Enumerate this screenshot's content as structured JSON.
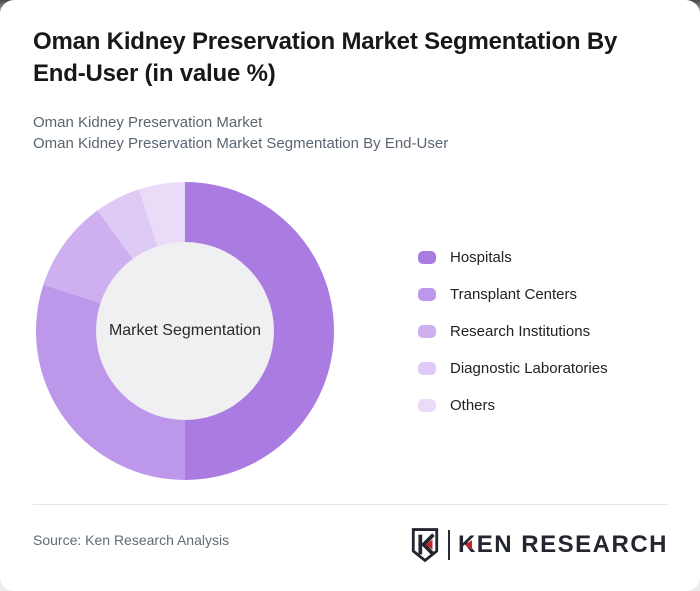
{
  "page": {
    "title": "Oman Kidney Preservation Market Segmentation By End-User (in value %)",
    "subtitle_line1": "Oman Kidney Preservation Market",
    "subtitle_line2": "Oman Kidney Preservation Market Segmentation By End-User"
  },
  "chart_data": {
    "type": "pie",
    "variant": "donut",
    "title": "Oman Kidney Preservation Market Segmentation By End-User (in value %)",
    "unit": "value %",
    "center_label": "Market Segmentation",
    "legend_position": "right",
    "categories": [
      "Hospitals",
      "Transplant Centers",
      "Research Institutions",
      "Diagnostic Laboratories",
      "Others"
    ],
    "values": [
      50,
      30,
      10,
      5,
      5
    ],
    "colors": [
      "#aa7ce2",
      "#bd97ea",
      "#ceafef",
      "#decbf5",
      "#eadcf9"
    ],
    "inner_circle_color": "#f0eff1",
    "start_angle_deg": 0,
    "direction": "clockwise"
  },
  "footer": {
    "source": "Source: Ken Research Analysis",
    "logo_badge_letter": "K",
    "logo_text": "KEN RESEARCH",
    "logo_accent_color": "#c4252a",
    "logo_dark_color": "#23262e"
  }
}
